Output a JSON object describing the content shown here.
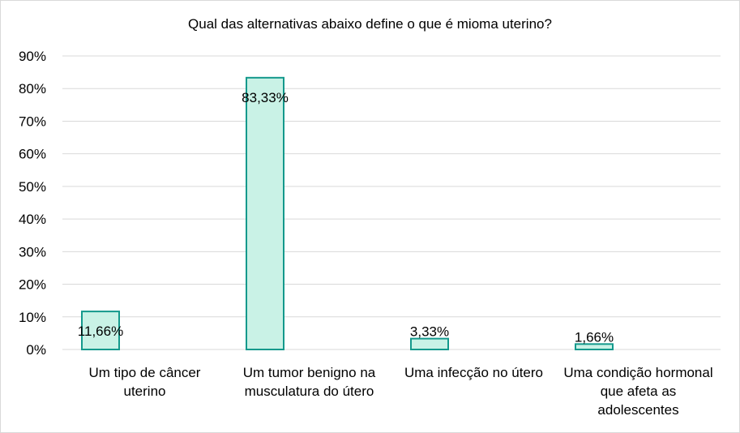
{
  "chart_data": {
    "type": "bar",
    "title": "Qual das alternativas abaixo define o que é mioma uterino?",
    "categories": [
      "Um tipo de câncer uterino",
      "Um tumor benigno na musculatura do útero",
      "Uma infecção no útero",
      "Uma condição hormonal que afeta as adolescentes"
    ],
    "values": [
      11.66,
      83.33,
      3.33,
      1.66
    ],
    "data_labels": [
      "11,66%",
      "83,33%",
      "3,33%",
      "1,66%"
    ],
    "ylim": [
      0,
      90
    ],
    "yticks": [
      0,
      10,
      20,
      30,
      40,
      50,
      60,
      70,
      80,
      90
    ],
    "ytick_labels": [
      "0%",
      "10%",
      "20%",
      "30%",
      "40%",
      "50%",
      "60%",
      "70%",
      "80%",
      "90%"
    ],
    "grid": true,
    "legend": "none",
    "colors": {
      "bar_fill": "#c9f2e6",
      "bar_stroke": "#14998c",
      "grid": "#d9d9d9"
    }
  }
}
